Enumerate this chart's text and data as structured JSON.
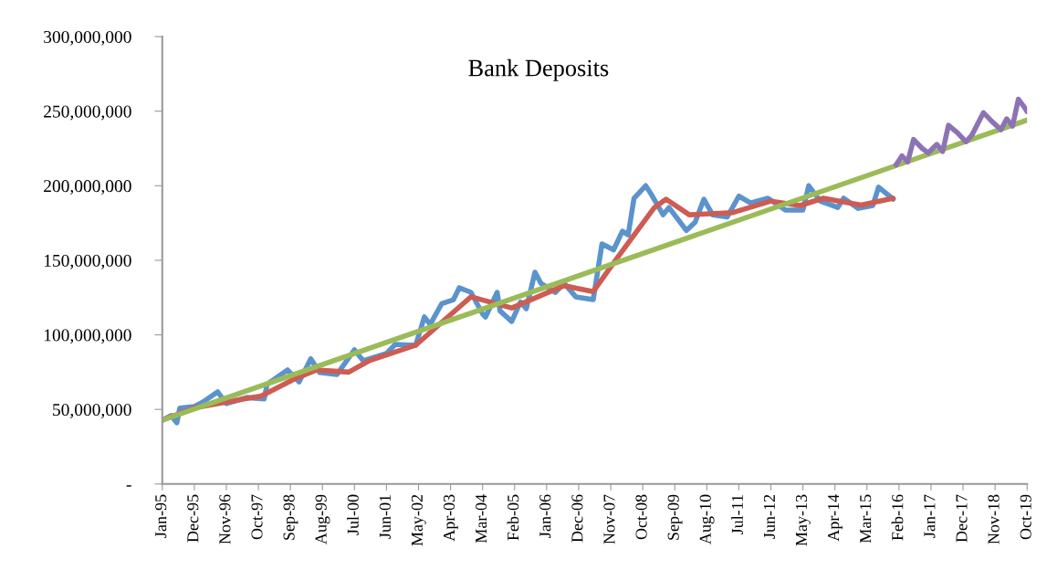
{
  "chart_data": {
    "type": "line",
    "title": "Bank Deposits",
    "xlim": [
      "1995-01",
      "2019-10"
    ],
    "xticks": [
      {
        "value": "1995-01",
        "label": "Jan-95"
      },
      {
        "value": "1995-12",
        "label": "Dec-95"
      },
      {
        "value": "1996-11",
        "label": "Nov-96"
      },
      {
        "value": "1997-10",
        "label": "Oct-97"
      },
      {
        "value": "1998-09",
        "label": "Sep-98"
      },
      {
        "value": "1999-08",
        "label": "Aug-99"
      },
      {
        "value": "2000-07",
        "label": "Jul-00"
      },
      {
        "value": "2001-06",
        "label": "Jun-01"
      },
      {
        "value": "2002-05",
        "label": "May-02"
      },
      {
        "value": "2003-04",
        "label": "Apr-03"
      },
      {
        "value": "2004-03",
        "label": "Mar-04"
      },
      {
        "value": "2005-02",
        "label": "Feb-05"
      },
      {
        "value": "2006-01",
        "label": "Jan-06"
      },
      {
        "value": "2006-12",
        "label": "Dec-06"
      },
      {
        "value": "2007-11",
        "label": "Nov-07"
      },
      {
        "value": "2008-10",
        "label": "Oct-08"
      },
      {
        "value": "2009-09",
        "label": "Sep-09"
      },
      {
        "value": "2010-08",
        "label": "Aug-10"
      },
      {
        "value": "2011-07",
        "label": "Jul-11"
      },
      {
        "value": "2012-06",
        "label": "Jun-12"
      },
      {
        "value": "2013-05",
        "label": "May-13"
      },
      {
        "value": "2014-04",
        "label": "Apr-14"
      },
      {
        "value": "2015-03",
        "label": "Mar-15"
      },
      {
        "value": "2016-02",
        "label": "Feb-16"
      },
      {
        "value": "2017-01",
        "label": "Jan-17"
      },
      {
        "value": "2017-12",
        "label": "Dec-17"
      },
      {
        "value": "2018-11",
        "label": "Nov-18"
      },
      {
        "value": "2019-10",
        "label": "Oct-19"
      }
    ],
    "ylim": [
      0,
      300000000
    ],
    "yticks": [
      {
        "value": 0,
        "label": "-"
      },
      {
        "value": 50000000,
        "label": "50,000,000"
      },
      {
        "value": 100000000,
        "label": "100,000,000"
      },
      {
        "value": 150000000,
        "label": "150,000,000"
      },
      {
        "value": 200000000,
        "label": "200,000,000"
      },
      {
        "value": 250000000,
        "label": "250,000,000"
      },
      {
        "value": 300000000,
        "label": "300,000,000"
      }
    ],
    "grid": false,
    "marker": "none",
    "line_style": "solid",
    "series": [
      {
        "color": "#5b93cd",
        "x": [
          "1995-01",
          "1995-04",
          "1995-06",
          "1995-07",
          "1995-12",
          "1996-03",
          "1996-08",
          "1996-11",
          "1997-06",
          "1997-12",
          "1998-01",
          "1998-08",
          "1998-12",
          "1999-04",
          "1999-07",
          "2000-01",
          "2000-07",
          "2000-10",
          "2001-06",
          "2001-09",
          "2002-04",
          "2002-07",
          "2002-09",
          "2003-01",
          "2003-05",
          "2003-07",
          "2003-11",
          "2004-03",
          "2004-04",
          "2004-08",
          "2004-09",
          "2005-01",
          "2005-04",
          "2005-06",
          "2005-09",
          "2005-11",
          "2006-04",
          "2006-07",
          "2006-11",
          "2007-05",
          "2007-08",
          "2007-12",
          "2008-03",
          "2008-05",
          "2008-07",
          "2008-11",
          "2009-01",
          "2009-05",
          "2009-07",
          "2010-01",
          "2010-04",
          "2010-07",
          "2010-10",
          "2011-03",
          "2011-07",
          "2011-11",
          "2012-05",
          "2012-11",
          "2013-05",
          "2013-07",
          "2013-11",
          "2014-05",
          "2014-07",
          "2014-12",
          "2015-05",
          "2015-07",
          "2015-12"
        ],
        "values": [
          42800000,
          45900000,
          41000000,
          50800000,
          52000000,
          55000000,
          61800000,
          53900000,
          58000000,
          57000000,
          67000000,
          76500000,
          68500000,
          84000000,
          74700000,
          73400000,
          90000000,
          82600000,
          87500000,
          93600000,
          93000000,
          112000000,
          107000000,
          121000000,
          123600000,
          131600000,
          128500000,
          114000000,
          112000000,
          128500000,
          116000000,
          109000000,
          122000000,
          117500000,
          142000000,
          134600000,
          128500000,
          134600000,
          125500000,
          123600000,
          161000000,
          157000000,
          169500000,
          167000000,
          191600000,
          200000000,
          194000000,
          180500000,
          185400000,
          170000000,
          175600000,
          191000000,
          180500000,
          179000000,
          193000000,
          188500000,
          191600000,
          183600000,
          183600000,
          200000000,
          189700000,
          185400000,
          191600000,
          184800000,
          186700000,
          199000000,
          191000000
        ]
      },
      {
        "color": "#cd5c52",
        "x": [
          "1995-01",
          "1995-12",
          "1997-05",
          "1997-11",
          "1998-10",
          "1999-06",
          "2000-05",
          "2000-12",
          "2002-04",
          "2002-11",
          "2003-11",
          "2005-01",
          "2006-07",
          "2007-05",
          "2008-01",
          "2009-02",
          "2009-06",
          "2010-02",
          "2011-05",
          "2012-06",
          "2013-04",
          "2013-12",
          "2015-01",
          "2015-12"
        ],
        "values": [
          42800000,
          51000000,
          57000000,
          59000000,
          70000000,
          76500000,
          75000000,
          82600000,
          93000000,
          105000000,
          125500000,
          118000000,
          133000000,
          129000000,
          151000000,
          185400000,
          191000000,
          180500000,
          182000000,
          189700000,
          186700000,
          191600000,
          187000000,
          191600000
        ]
      },
      {
        "color": "#9bbb59",
        "x": [
          "1995-01",
          "2019-10"
        ],
        "values": [
          42800000,
          244000000
        ]
      },
      {
        "color": "#8d73b3",
        "x": [
          "2016-01",
          "2016-03",
          "2016-05",
          "2016-07",
          "2016-10",
          "2016-12",
          "2017-03",
          "2017-05",
          "2017-07",
          "2017-10",
          "2018-01",
          "2018-03",
          "2018-07",
          "2018-10",
          "2019-01",
          "2019-03",
          "2019-05",
          "2019-07",
          "2019-09",
          "2019-10"
        ],
        "values": [
          214000000,
          220000000,
          216000000,
          231000000,
          225000000,
          222000000,
          227700000,
          223000000,
          240500000,
          235600000,
          229500000,
          233800000,
          249000000,
          243000000,
          237500000,
          244800000,
          240000000,
          258000000,
          252800000,
          249700000
        ]
      }
    ]
  }
}
